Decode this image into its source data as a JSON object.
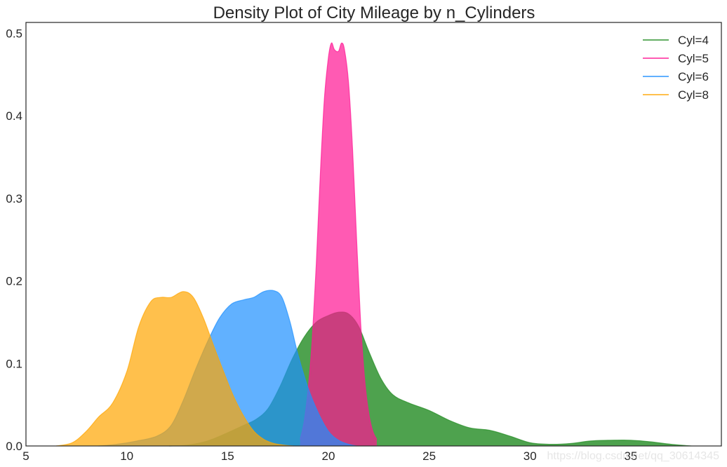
{
  "chart_data": {
    "type": "area",
    "title": "Density Plot of City Mileage by n_Cylinders",
    "xlabel": "",
    "ylabel": "",
    "xlim": [
      5,
      39.5
    ],
    "ylim": [
      0,
      0.513
    ],
    "xticks": [
      5,
      10,
      15,
      20,
      25,
      30,
      35
    ],
    "xtick_labels": [
      "5",
      "10",
      "15",
      "20",
      "25",
      "30",
      "35"
    ],
    "yticks": [
      0.0,
      0.1,
      0.2,
      0.3,
      0.4,
      0.5
    ],
    "ytick_labels": [
      "0.0",
      "0.1",
      "0.2",
      "0.3",
      "0.4",
      "0.5"
    ],
    "grid": false,
    "legend_position": "upper right",
    "series": [
      {
        "name": "Cyl=4",
        "color": "#228B22",
        "fill_opacity": 0.8,
        "x": [
          12.1,
          13.0,
          14.0,
          15.0,
          15.8,
          16.4,
          17.0,
          17.6,
          18.2,
          18.8,
          19.4,
          20.0,
          20.5,
          21.0,
          21.5,
          22.0,
          22.6,
          23.2,
          24.0,
          25.0,
          26.0,
          27.0,
          28.0,
          29.0,
          30.0,
          31.0,
          32.0,
          33.0,
          34.0,
          35.0,
          36.0,
          37.0,
          38.0
        ],
        "y": [
          0.0,
          0.001,
          0.006,
          0.016,
          0.025,
          0.032,
          0.045,
          0.072,
          0.105,
          0.132,
          0.15,
          0.158,
          0.162,
          0.16,
          0.145,
          0.115,
          0.082,
          0.062,
          0.052,
          0.043,
          0.031,
          0.022,
          0.019,
          0.012,
          0.004,
          0.002,
          0.003,
          0.006,
          0.007,
          0.007,
          0.005,
          0.002,
          0.0
        ]
      },
      {
        "name": "Cyl=5",
        "color": "#FF1493",
        "fill_opacity": 0.7,
        "x": [
          18.6,
          18.8,
          19.0,
          19.2,
          19.4,
          19.6,
          19.8,
          20.0,
          20.15,
          20.3,
          20.5,
          20.65,
          20.8,
          21.0,
          21.2,
          21.4,
          21.6,
          21.8,
          22.0,
          22.2,
          22.4
        ],
        "y": [
          0.008,
          0.03,
          0.07,
          0.13,
          0.22,
          0.33,
          0.42,
          0.47,
          0.488,
          0.48,
          0.478,
          0.488,
          0.48,
          0.44,
          0.36,
          0.25,
          0.15,
          0.08,
          0.04,
          0.018,
          0.008
        ]
      },
      {
        "name": "Cyl=6",
        "color": "#1E90FF",
        "fill_opacity": 0.7,
        "x": [
          8.6,
          9.5,
          10.5,
          11.5,
          12.2,
          12.8,
          13.4,
          14.0,
          14.6,
          15.2,
          15.8,
          16.3,
          16.8,
          17.3,
          17.7,
          18.1,
          18.5,
          19.0,
          19.5,
          20.0,
          20.5,
          21.0,
          21.4
        ],
        "y": [
          0.0,
          0.002,
          0.006,
          0.012,
          0.025,
          0.055,
          0.092,
          0.126,
          0.155,
          0.172,
          0.177,
          0.18,
          0.187,
          0.188,
          0.18,
          0.15,
          0.11,
          0.07,
          0.04,
          0.018,
          0.007,
          0.002,
          0.0
        ]
      },
      {
        "name": "Cyl=8",
        "color": "#FFA500",
        "fill_opacity": 0.7,
        "x": [
          6.5,
          7.3,
          8.0,
          8.6,
          9.3,
          10.0,
          10.6,
          11.2,
          11.7,
          12.2,
          12.8,
          13.3,
          13.8,
          14.3,
          14.8,
          15.3,
          15.8,
          16.3,
          16.8,
          17.3,
          17.8,
          18.3
        ],
        "y": [
          0.0,
          0.004,
          0.018,
          0.035,
          0.052,
          0.09,
          0.145,
          0.175,
          0.18,
          0.18,
          0.187,
          0.18,
          0.155,
          0.122,
          0.09,
          0.06,
          0.036,
          0.018,
          0.008,
          0.003,
          0.001,
          0.0
        ]
      }
    ]
  },
  "watermark": "https://blog.csdn.net/qq_30614345"
}
